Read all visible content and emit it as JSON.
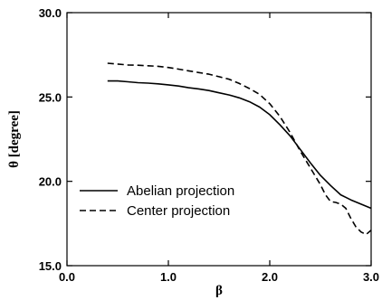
{
  "chart_data": {
    "type": "line",
    "xlabel": "β",
    "ylabel": "θ [degree]",
    "xlim": [
      0.0,
      3.0
    ],
    "ylim": [
      15.0,
      30.0
    ],
    "x_ticks": [
      0.0,
      1.0,
      2.0,
      3.0
    ],
    "x_tick_labels": [
      "0.0",
      "1.0",
      "2.0",
      "3.0"
    ],
    "y_ticks": [
      15.0,
      20.0,
      25.0,
      30.0
    ],
    "y_tick_labels": [
      "15.0",
      "20.0",
      "25.0",
      "30.0"
    ],
    "grid": false,
    "legend_position": "bottom-left",
    "series": [
      {
        "name": "Abelian projection",
        "style": "solid",
        "color": "#000000",
        "x": [
          0.4,
          0.5,
          0.6,
          0.7,
          0.8,
          0.9,
          1.0,
          1.1,
          1.2,
          1.3,
          1.4,
          1.5,
          1.6,
          1.7,
          1.8,
          1.9,
          2.0,
          2.1,
          2.2,
          2.3,
          2.4,
          2.5,
          2.6,
          2.7,
          2.8,
          2.9,
          3.0
        ],
        "values": [
          25.95,
          25.95,
          25.9,
          25.85,
          25.82,
          25.78,
          25.72,
          25.65,
          25.55,
          25.48,
          25.38,
          25.25,
          25.12,
          24.95,
          24.72,
          24.4,
          23.95,
          23.35,
          22.7,
          21.9,
          21.1,
          20.35,
          19.75,
          19.2,
          18.9,
          18.65,
          18.4
        ]
      },
      {
        "name": "Center projection",
        "style": "dashed",
        "color": "#000000",
        "x": [
          0.4,
          0.5,
          0.6,
          0.7,
          0.8,
          0.9,
          1.0,
          1.1,
          1.2,
          1.3,
          1.4,
          1.5,
          1.6,
          1.7,
          1.8,
          1.9,
          2.0,
          2.1,
          2.2,
          2.3,
          2.4,
          2.5,
          2.55,
          2.6,
          2.65,
          2.7,
          2.75,
          2.8,
          2.85,
          2.9,
          2.95,
          3.0
        ],
        "values": [
          27.0,
          26.95,
          26.9,
          26.88,
          26.85,
          26.82,
          26.75,
          26.65,
          26.55,
          26.45,
          26.35,
          26.2,
          26.05,
          25.8,
          25.5,
          25.15,
          24.6,
          23.85,
          22.9,
          21.8,
          20.8,
          19.8,
          19.2,
          18.8,
          18.75,
          18.65,
          18.4,
          17.8,
          17.3,
          17.0,
          16.85,
          17.1
        ]
      }
    ]
  }
}
